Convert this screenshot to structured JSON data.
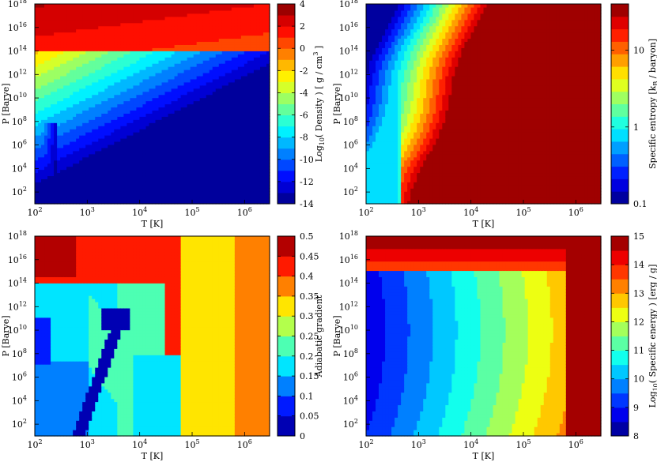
{
  "chart_data": [
    {
      "type": "heatmap",
      "panel": "density",
      "xlabel": "T [K]",
      "ylabel": "P [Barye]",
      "xscale": "log",
      "yscale": "log",
      "xlim": [
        100,
        3000000
      ],
      "ylim": [
        10,
        1e+18
      ],
      "x_ticks": [
        "10",
        "10",
        "10",
        "10",
        "10"
      ],
      "x_tick_exps": [
        "2",
        "3",
        "4",
        "5",
        "6"
      ],
      "y_ticks": [
        "10",
        "10",
        "10",
        "10",
        "10",
        "10",
        "10",
        "10",
        "10"
      ],
      "y_tick_exps": [
        "2",
        "4",
        "6",
        "8",
        "10",
        "12",
        "14",
        "16",
        "18"
      ],
      "colorbar": {
        "label_pre": "Log",
        "label_sub": "10",
        "label_mid": "( Density ) [ g / cm",
        "label_sup": "3",
        "label_post": " ]",
        "range": [
          -14,
          4
        ],
        "ticks": [
          "4",
          "2",
          "0",
          "-2",
          "-4",
          "-6",
          "-8",
          "-10",
          "-12",
          "-14"
        ],
        "scale": "linear",
        "colormap": "jet",
        "levels": 18
      }
    },
    {
      "type": "heatmap",
      "panel": "entropy",
      "xlabel": "T [K]",
      "ylabel": "P [Barye]",
      "xscale": "log",
      "yscale": "log",
      "xlim": [
        100,
        3000000
      ],
      "ylim": [
        10,
        1e+18
      ],
      "x_ticks": [
        "10",
        "10",
        "10",
        "10",
        "10"
      ],
      "x_tick_exps": [
        "2",
        "3",
        "4",
        "5",
        "6"
      ],
      "y_ticks": [
        "10",
        "10",
        "10",
        "10",
        "10",
        "10",
        "10",
        "10",
        "10"
      ],
      "y_tick_exps": [
        "2",
        "4",
        "6",
        "8",
        "10",
        "12",
        "14",
        "16",
        "18"
      ],
      "colorbar": {
        "label_pre": "Specific entropy [k",
        "label_sub": "B",
        "label_post": " / baryon]",
        "range": [
          0.1,
          40
        ],
        "ticks": [
          "10",
          "1",
          "0.1"
        ],
        "scale": "log",
        "colormap": "jet",
        "levels": 16
      }
    },
    {
      "type": "heatmap",
      "panel": "adiabatic",
      "xlabel": "T [K]",
      "ylabel": "P [Barye]",
      "xscale": "log",
      "yscale": "log",
      "xlim": [
        100,
        3000000
      ],
      "ylim": [
        10,
        1e+18
      ],
      "x_ticks": [
        "10",
        "10",
        "10",
        "10",
        "10"
      ],
      "x_tick_exps": [
        "2",
        "3",
        "4",
        "5",
        "6"
      ],
      "y_ticks": [
        "10",
        "10",
        "10",
        "10",
        "10",
        "10",
        "10",
        "10",
        "10"
      ],
      "y_tick_exps": [
        "2",
        "4",
        "6",
        "8",
        "10",
        "12",
        "14",
        "16",
        "18"
      ],
      "colorbar": {
        "label": "Adiabatic gradient",
        "range": [
          0,
          0.5
        ],
        "ticks": [
          "0.5",
          "0.45",
          "0.4",
          "0.35",
          "0.3",
          "0.25",
          "0.2",
          "0.15",
          "0.1",
          "0.05",
          "0"
        ],
        "scale": "linear",
        "colormap": "jet",
        "levels": 10
      }
    },
    {
      "type": "heatmap",
      "panel": "energy",
      "xlabel": "T [K]",
      "ylabel": "P [Barye]",
      "xscale": "log",
      "yscale": "log",
      "xlim": [
        100,
        3000000
      ],
      "ylim": [
        10,
        1e+18
      ],
      "x_ticks": [
        "10",
        "10",
        "10",
        "10",
        "10"
      ],
      "x_tick_exps": [
        "2",
        "3",
        "4",
        "5",
        "6"
      ],
      "y_ticks": [
        "10",
        "10",
        "10",
        "10",
        "10",
        "10",
        "10",
        "10",
        "10"
      ],
      "y_tick_exps": [
        "2",
        "4",
        "6",
        "8",
        "10",
        "12",
        "14",
        "16",
        "18"
      ],
      "colorbar": {
        "label_pre": "Log",
        "label_sub": "10",
        "label_post": "( Specific energy ) [erg / g]",
        "range": [
          8,
          15
        ],
        "ticks": [
          "15",
          "14",
          "13",
          "12",
          "11",
          "10",
          "9",
          "8"
        ],
        "scale": "linear",
        "colormap": "jet",
        "levels": 14
      }
    }
  ]
}
